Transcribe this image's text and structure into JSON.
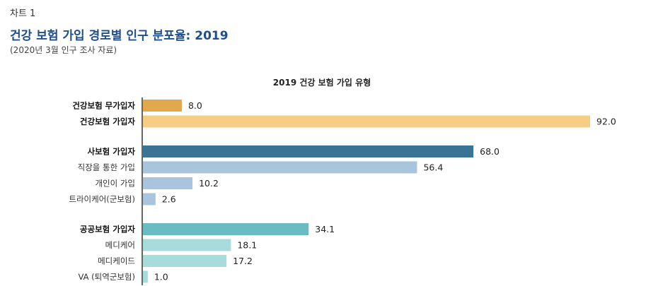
{
  "header": {
    "chart_label": "차트 1",
    "title": "건강 보험 가입 경로별 인구 분포율: 2019",
    "subtitle": "(2020년 3월 인구 조사 자료)"
  },
  "colors": {
    "uninsured": "#e0a94e",
    "insured": "#f7cd86",
    "private": "#3a7394",
    "private_sub": "#a9c5de",
    "public": "#6bbcc2",
    "public_sub": "#a8dbdc",
    "axis": "#333333"
  },
  "chart_data": {
    "type": "bar",
    "orientation": "horizontal",
    "title": "2019 건강 보험 가입 유형",
    "xlim": [
      0,
      92
    ],
    "groups": [
      {
        "name": "coverage",
        "bars": [
          {
            "category": "건강보험 무가입자",
            "value": 8.0,
            "value_label": "8.0",
            "bold": true,
            "color_key": "uninsured"
          },
          {
            "category": "건강보험 가입자",
            "value": 92.0,
            "value_label": "92.0",
            "bold": true,
            "color_key": "insured"
          }
        ]
      },
      {
        "name": "private",
        "bars": [
          {
            "category": "사보험 가입자",
            "value": 68.0,
            "value_label": "68.0",
            "bold": true,
            "color_key": "private"
          },
          {
            "category": "직장을 통한 가입",
            "value": 56.4,
            "value_label": "56.4",
            "bold": false,
            "color_key": "private_sub"
          },
          {
            "category": "개인이 가입",
            "value": 10.2,
            "value_label": "10.2",
            "bold": false,
            "color_key": "private_sub"
          },
          {
            "category": "트라이케어(군보험)",
            "value": 2.6,
            "value_label": "2.6",
            "bold": false,
            "color_key": "private_sub"
          }
        ]
      },
      {
        "name": "public",
        "bars": [
          {
            "category": "공공보험 가입자",
            "value": 34.1,
            "value_label": "34.1",
            "bold": true,
            "color_key": "public"
          },
          {
            "category": "메디케어",
            "value": 18.1,
            "value_label": "18.1",
            "bold": false,
            "color_key": "public_sub"
          },
          {
            "category": "메디케이드",
            "value": 17.2,
            "value_label": "17.2",
            "bold": false,
            "color_key": "public_sub"
          },
          {
            "category": "VA (퇴역군보험)",
            "value": 1.0,
            "value_label": "1.0",
            "bold": false,
            "color_key": "public_sub"
          }
        ]
      }
    ]
  }
}
